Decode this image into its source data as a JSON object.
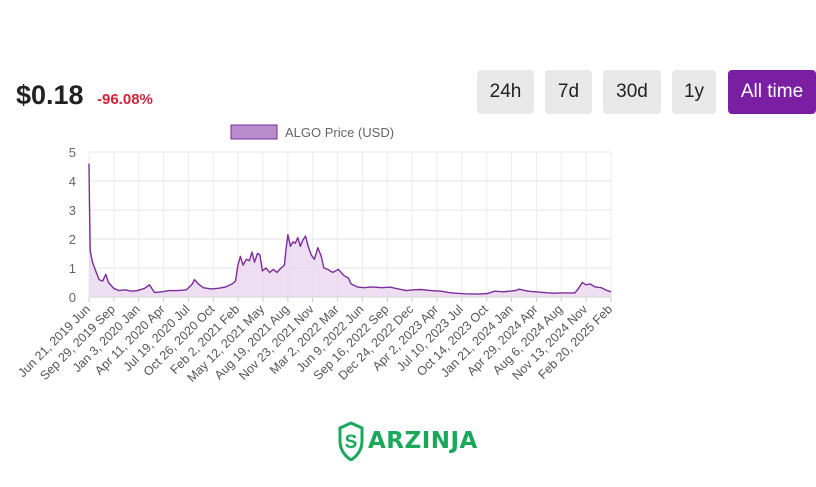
{
  "header": {
    "price": "$0.18",
    "change": "-96.08%"
  },
  "timeframes": [
    {
      "label": "24h",
      "active": false
    },
    {
      "label": "7d",
      "active": false
    },
    {
      "label": "30d",
      "active": false
    },
    {
      "label": "1y",
      "active": false
    },
    {
      "label": "All time",
      "active": true
    }
  ],
  "brand": {
    "name": "ARZINJA"
  },
  "colors": {
    "accent": "#7a1fa2",
    "line": "#7b2d9c",
    "fill": "#e7d3ee",
    "negative": "#d0243a",
    "brand": "#1aa85a"
  },
  "chart_data": {
    "type": "area",
    "legend": "ALGO Price (USD)",
    "legend_position": "top",
    "grid": true,
    "ylim": [
      0,
      5
    ],
    "yticks": [
      0,
      1,
      2,
      3,
      4,
      5
    ],
    "xlabels": [
      "Jun 21, 2019 Jun",
      "Sep 29, 2019 Sep",
      "Jan 3, 2020 Jan",
      "Apr 11, 2020 Apr",
      "Jul 19, 2020 Jul",
      "Oct 26, 2020 Oct",
      "Feb 2, 2021 Feb",
      "May 12, 2021 May",
      "Aug 19, 2021 Aug",
      "Nov 23, 2021 Nov",
      "Mar 2, 2022 Mar",
      "Jun 9, 2022 Jun",
      "Sep 16, 2022 Sep",
      "Dec 24, 2022 Dec",
      "Apr 2, 2023 Apr",
      "Jul 10, 2023 Jul",
      "Oct 14, 2023 Oct",
      "Jan 21, 2024 Jan",
      "Apr 29, 2024 Apr",
      "Aug 6, 2024 Aug",
      "Nov 13, 2024 Nov",
      "Feb 20, 2025 Feb"
    ],
    "x_range": [
      "2019-06-21",
      "2025-03-31"
    ],
    "points": [
      [
        "2019-06-21",
        4.6
      ],
      [
        "2019-06-23",
        3.2
      ],
      [
        "2019-06-26",
        1.6
      ],
      [
        "2019-07-05",
        1.2
      ],
      [
        "2019-07-18",
        0.9
      ],
      [
        "2019-08-01",
        0.6
      ],
      [
        "2019-08-15",
        0.55
      ],
      [
        "2019-08-28",
        0.78
      ],
      [
        "2019-09-08",
        0.5
      ],
      [
        "2019-09-29",
        0.3
      ],
      [
        "2019-10-20",
        0.22
      ],
      [
        "2019-11-15",
        0.25
      ],
      [
        "2019-12-10",
        0.2
      ],
      [
        "2020-01-03",
        0.22
      ],
      [
        "2020-02-01",
        0.3
      ],
      [
        "2020-02-20",
        0.42
      ],
      [
        "2020-03-12",
        0.15
      ],
      [
        "2020-04-11",
        0.18
      ],
      [
        "2020-05-10",
        0.22
      ],
      [
        "2020-06-15",
        0.22
      ],
      [
        "2020-07-19",
        0.25
      ],
      [
        "2020-08-12",
        0.45
      ],
      [
        "2020-08-20",
        0.6
      ],
      [
        "2020-09-05",
        0.45
      ],
      [
        "2020-09-25",
        0.32
      ],
      [
        "2020-10-26",
        0.28
      ],
      [
        "2020-11-25",
        0.3
      ],
      [
        "2020-12-25",
        0.35
      ],
      [
        "2021-01-20",
        0.45
      ],
      [
        "2021-02-02",
        0.55
      ],
      [
        "2021-02-12",
        1.1
      ],
      [
        "2021-02-22",
        1.4
      ],
      [
        "2021-03-05",
        1.1
      ],
      [
        "2021-03-18",
        1.3
      ],
      [
        "2021-03-30",
        1.25
      ],
      [
        "2021-04-10",
        1.55
      ],
      [
        "2021-04-20",
        1.2
      ],
      [
        "2021-05-02",
        1.5
      ],
      [
        "2021-05-12",
        1.45
      ],
      [
        "2021-05-22",
        0.9
      ],
      [
        "2021-06-05",
        1.0
      ],
      [
        "2021-06-20",
        0.85
      ],
      [
        "2021-07-05",
        0.95
      ],
      [
        "2021-07-20",
        0.85
      ],
      [
        "2021-08-05",
        1.0
      ],
      [
        "2021-08-19",
        1.1
      ],
      [
        "2021-08-26",
        1.7
      ],
      [
        "2021-09-02",
        2.15
      ],
      [
        "2021-09-12",
        1.75
      ],
      [
        "2021-09-22",
        1.9
      ],
      [
        "2021-10-02",
        1.85
      ],
      [
        "2021-10-12",
        2.05
      ],
      [
        "2021-10-22",
        1.75
      ],
      [
        "2021-11-01",
        1.95
      ],
      [
        "2021-11-12",
        2.1
      ],
      [
        "2021-11-23",
        1.75
      ],
      [
        "2021-12-05",
        1.45
      ],
      [
        "2021-12-18",
        1.3
      ],
      [
        "2022-01-01",
        1.7
      ],
      [
        "2022-01-15",
        1.4
      ],
      [
        "2022-01-25",
        1.0
      ],
      [
        "2022-02-10",
        0.95
      ],
      [
        "2022-03-02",
        0.85
      ],
      [
        "2022-03-25",
        0.95
      ],
      [
        "2022-04-15",
        0.75
      ],
      [
        "2022-05-05",
        0.65
      ],
      [
        "2022-05-15",
        0.45
      ],
      [
        "2022-06-09",
        0.35
      ],
      [
        "2022-07-05",
        0.32
      ],
      [
        "2022-08-10",
        0.35
      ],
      [
        "2022-09-16",
        0.32
      ],
      [
        "2022-10-20",
        0.34
      ],
      [
        "2022-11-10",
        0.3
      ],
      [
        "2022-12-24",
        0.22
      ],
      [
        "2023-01-25",
        0.25
      ],
      [
        "2023-02-20",
        0.26
      ],
      [
        "2023-04-02",
        0.22
      ],
      [
        "2023-05-15",
        0.2
      ],
      [
        "2023-06-15",
        0.15
      ],
      [
        "2023-07-10",
        0.13
      ],
      [
        "2023-08-20",
        0.11
      ],
      [
        "2023-10-14",
        0.1
      ],
      [
        "2023-11-20",
        0.12
      ],
      [
        "2023-12-15",
        0.2
      ],
      [
        "2024-01-21",
        0.18
      ],
      [
        "2024-03-10",
        0.22
      ],
      [
        "2024-03-25",
        0.27
      ],
      [
        "2024-04-29",
        0.2
      ],
      [
        "2024-06-10",
        0.17
      ],
      [
        "2024-08-06",
        0.13
      ],
      [
        "2024-09-15",
        0.14
      ],
      [
        "2024-11-05",
        0.14
      ],
      [
        "2024-11-20",
        0.3
      ],
      [
        "2024-12-05",
        0.5
      ],
      [
        "2024-12-20",
        0.42
      ],
      [
        "2025-01-05",
        0.45
      ],
      [
        "2025-01-25",
        0.35
      ],
      [
        "2025-02-20",
        0.32
      ],
      [
        "2025-03-10",
        0.24
      ],
      [
        "2025-03-31",
        0.18
      ]
    ]
  }
}
